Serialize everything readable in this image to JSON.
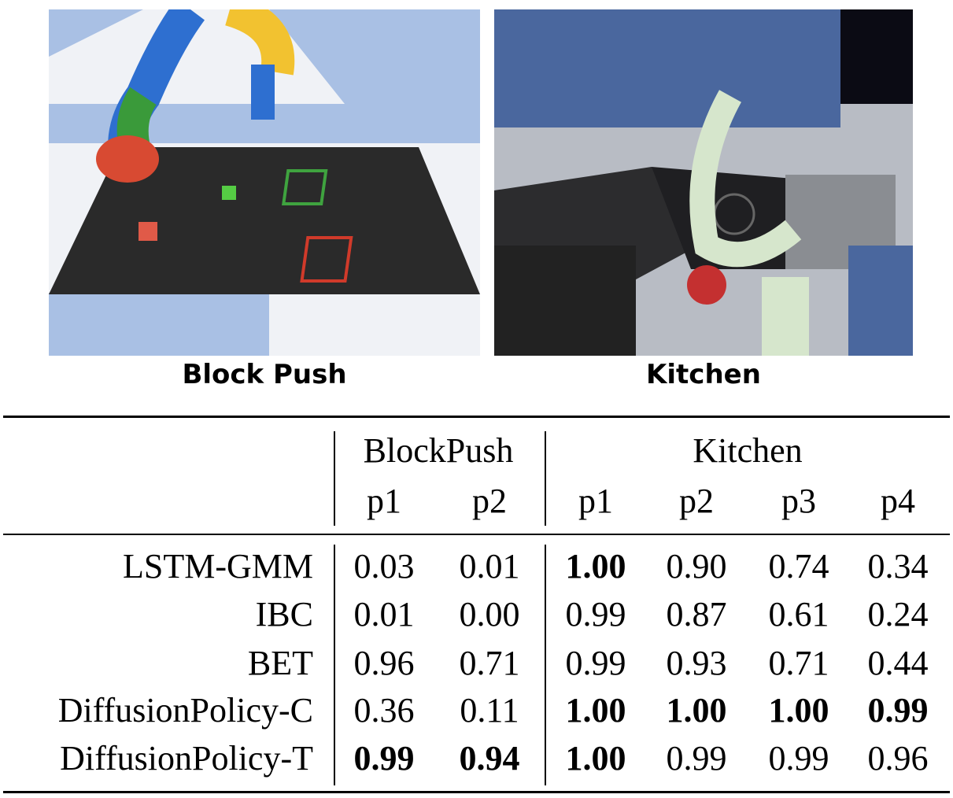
{
  "figures": [
    {
      "caption": "Block Push"
    },
    {
      "caption": "Kitchen"
    }
  ],
  "table": {
    "groups": [
      "BlockPush",
      "Kitchen"
    ],
    "columns": [
      "p1",
      "p2",
      "p1",
      "p2",
      "p3",
      "p4"
    ],
    "rows": [
      {
        "label": "LSTM-GMM",
        "values": [
          "0.03",
          "0.01",
          "1.00",
          "0.90",
          "0.74",
          "0.34"
        ],
        "bold": [
          false,
          false,
          true,
          false,
          false,
          false
        ]
      },
      {
        "label": "IBC",
        "values": [
          "0.01",
          "0.00",
          "0.99",
          "0.87",
          "0.61",
          "0.24"
        ],
        "bold": [
          false,
          false,
          false,
          false,
          false,
          false
        ]
      },
      {
        "label": "BET",
        "values": [
          "0.96",
          "0.71",
          "0.99",
          "0.93",
          "0.71",
          "0.44"
        ],
        "bold": [
          false,
          false,
          false,
          false,
          false,
          false
        ]
      },
      {
        "label": "DiffusionPolicy-C",
        "values": [
          "0.36",
          "0.11",
          "1.00",
          "1.00",
          "1.00",
          "0.99"
        ],
        "bold": [
          false,
          false,
          true,
          true,
          true,
          true
        ]
      },
      {
        "label": "DiffusionPolicy-T",
        "values": [
          "0.99",
          "0.94",
          "1.00",
          "0.99",
          "0.99",
          "0.96"
        ],
        "bold": [
          true,
          true,
          true,
          false,
          false,
          false
        ]
      }
    ]
  }
}
